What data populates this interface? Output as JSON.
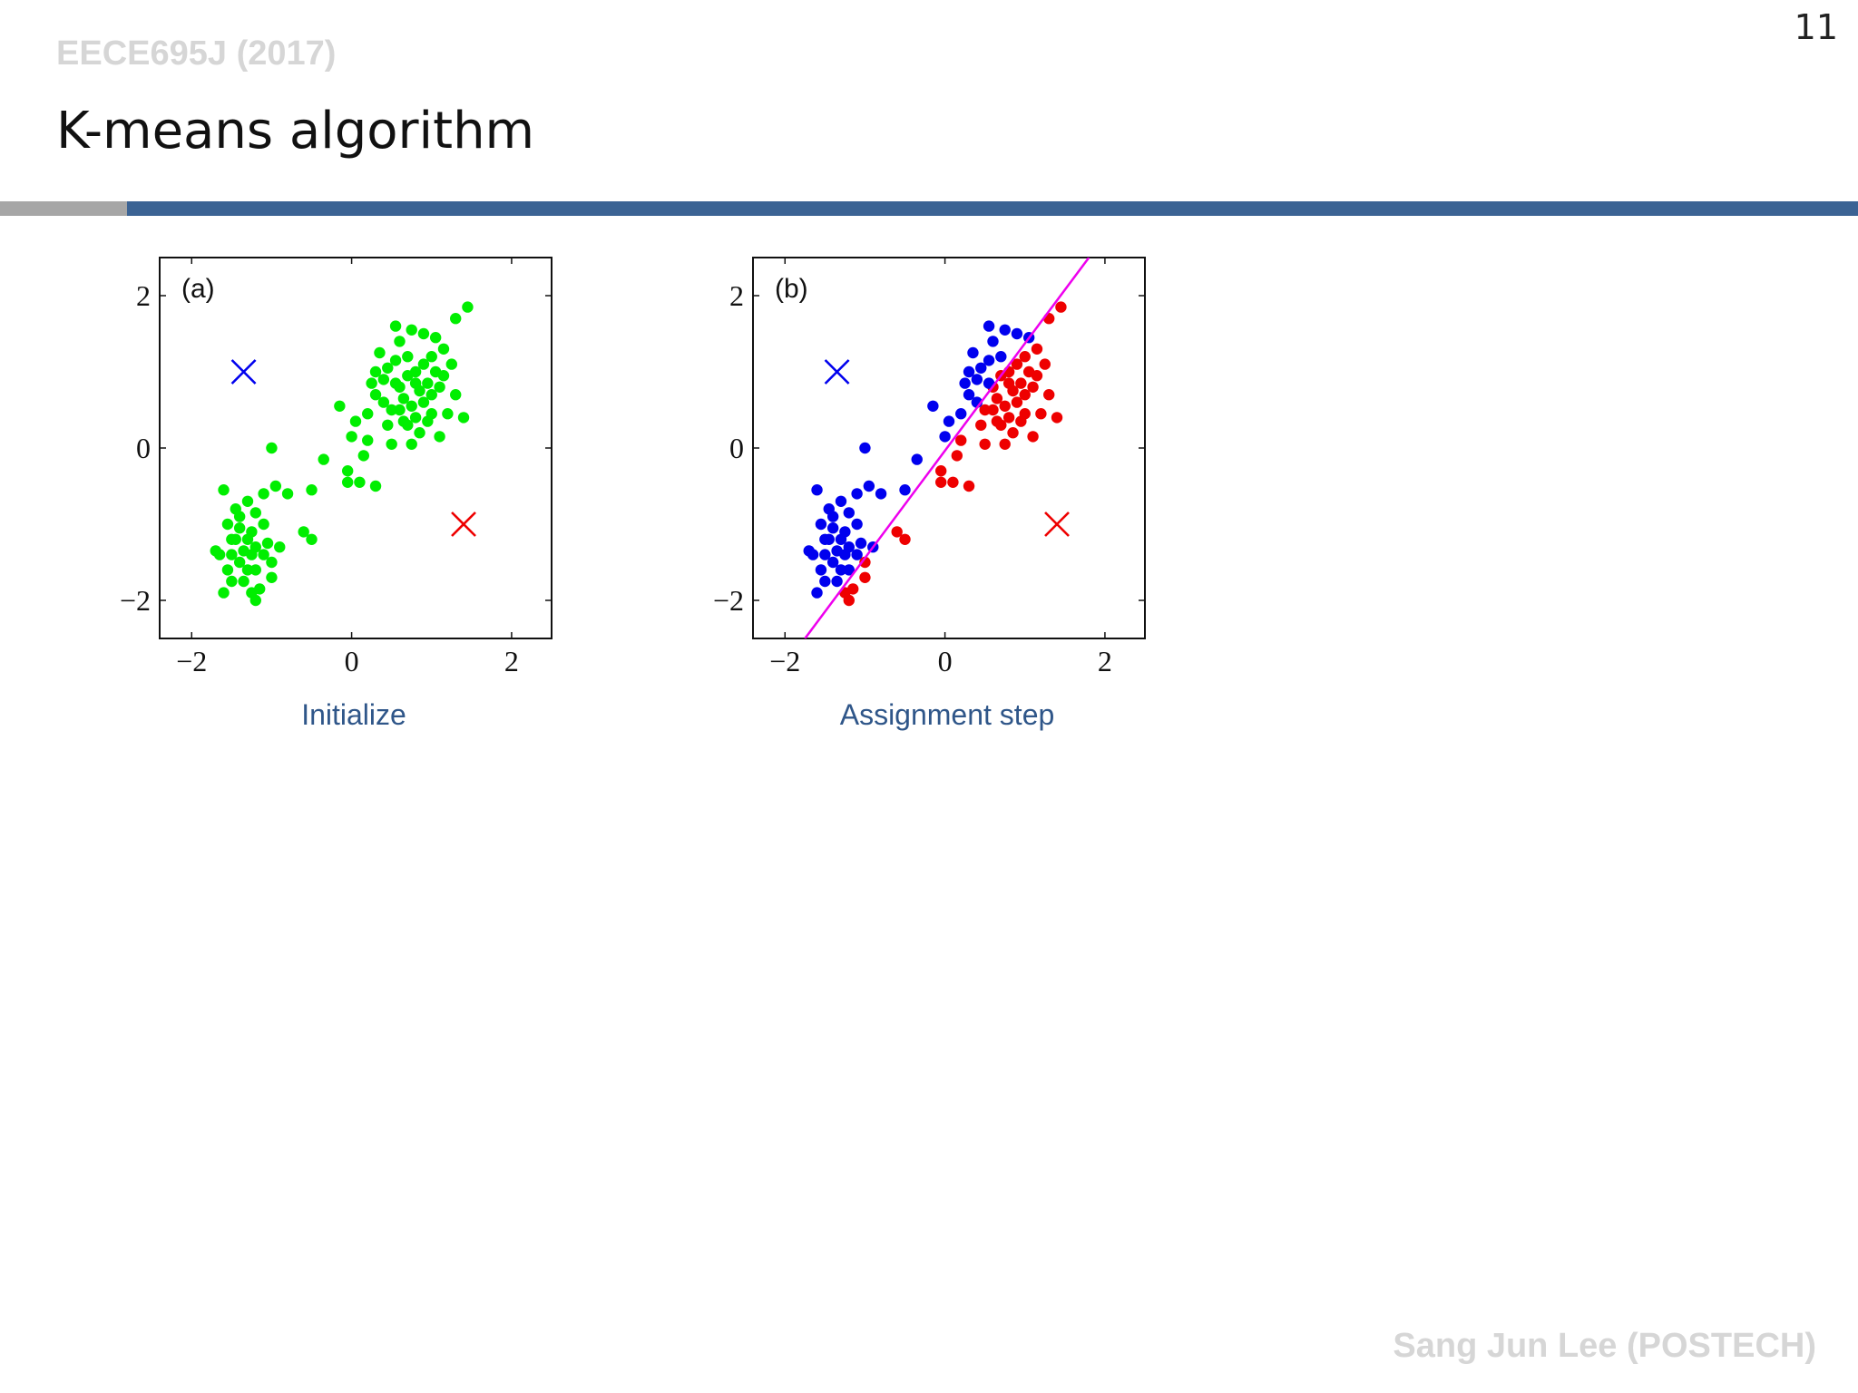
{
  "slide": {
    "course": "EECE695J (2017)",
    "page_number": "11",
    "title": "K-means algorithm",
    "footer": "Sang Jun Lee (POSTECH)"
  },
  "colors": {
    "green": "#00ee00",
    "blue": "#0000ee",
    "red": "#ee0000",
    "boundary": "#ee00ee"
  },
  "chart_data": [
    {
      "type": "scatter",
      "panel_label": "(a)",
      "caption": "Initialize",
      "xlim": [
        -2.4,
        2.5
      ],
      "ylim": [
        -2.5,
        2.5
      ],
      "xticks": [
        -2,
        0,
        2
      ],
      "yticks": [
        -2,
        0,
        2
      ],
      "tick_labels_x": [
        "−2",
        "0",
        "2"
      ],
      "tick_labels_y": [
        "−2",
        "0",
        "2"
      ],
      "centroids": [
        {
          "name": "centroid-1",
          "x": -1.35,
          "y": 1.0,
          "color": "blue"
        },
        {
          "name": "centroid-2",
          "x": 1.4,
          "y": -1.0,
          "color": "red"
        }
      ],
      "points": [
        [
          -1.2,
          -1.3
        ],
        [
          -1.3,
          -1.6
        ],
        [
          -1.5,
          -1.4
        ],
        [
          -1.1,
          -1.0
        ],
        [
          -1.4,
          -0.9
        ],
        [
          -1.6,
          -1.9
        ],
        [
          -1.0,
          -1.5
        ],
        [
          -1.25,
          -1.1
        ],
        [
          -1.45,
          -1.2
        ],
        [
          -1.35,
          -1.75
        ],
        [
          -1.15,
          -1.85
        ],
        [
          -1.55,
          -1.6
        ],
        [
          -1.05,
          -1.25
        ],
        [
          -1.3,
          -0.7
        ],
        [
          -1.6,
          -0.55
        ],
        [
          -1.4,
          -1.05
        ],
        [
          -1.2,
          -2.0
        ],
        [
          -1.5,
          -1.75
        ],
        [
          -0.95,
          -0.5
        ],
        [
          -1.0,
          -0.0
        ],
        [
          -1.25,
          -1.4
        ],
        [
          -1.4,
          -1.5
        ],
        [
          -1.3,
          -1.2
        ],
        [
          -1.2,
          -1.6
        ],
        [
          -1.1,
          -1.4
        ],
        [
          -1.35,
          -1.35
        ],
        [
          -1.5,
          -1.2
        ],
        [
          -1.45,
          -0.8
        ],
        [
          -1.65,
          -1.4
        ],
        [
          -1.0,
          -1.7
        ],
        [
          -0.6,
          -1.1
        ],
        [
          -0.5,
          -1.2
        ],
        [
          -0.5,
          -0.55
        ],
        [
          -0.8,
          -0.6
        ],
        [
          -0.9,
          -1.3
        ],
        [
          -1.1,
          -0.6
        ],
        [
          -1.2,
          -0.85
        ],
        [
          -1.55,
          -1.0
        ],
        [
          -1.7,
          -1.35
        ],
        [
          -1.25,
          -1.9
        ],
        [
          -0.35,
          -0.15
        ],
        [
          -0.05,
          -0.3
        ],
        [
          -0.05,
          -0.45
        ],
        [
          0.1,
          -0.45
        ],
        [
          0.2,
          0.1
        ],
        [
          0.05,
          0.35
        ],
        [
          -0.15,
          0.55
        ],
        [
          0.3,
          -0.5
        ],
        [
          0.15,
          -0.1
        ],
        [
          0.0,
          0.15
        ],
        [
          0.5,
          0.5
        ],
        [
          0.6,
          0.8
        ],
        [
          0.7,
          0.3
        ],
        [
          0.8,
          1.0
        ],
        [
          0.9,
          0.6
        ],
        [
          1.0,
          1.2
        ],
        [
          0.4,
          0.9
        ],
        [
          0.55,
          1.15
        ],
        [
          0.75,
          0.55
        ],
        [
          0.85,
          0.2
        ],
        [
          1.1,
          0.8
        ],
        [
          1.2,
          0.45
        ],
        [
          0.3,
          0.7
        ],
        [
          0.6,
          1.4
        ],
        [
          0.9,
          1.5
        ],
        [
          1.05,
          1.0
        ],
        [
          0.7,
          0.95
        ],
        [
          0.45,
          0.3
        ],
        [
          0.65,
          0.65
        ],
        [
          0.95,
          0.85
        ],
        [
          0.55,
          1.6
        ],
        [
          0.75,
          1.55
        ],
        [
          1.15,
          1.3
        ],
        [
          1.3,
          1.7
        ],
        [
          1.45,
          1.85
        ],
        [
          1.25,
          1.1
        ],
        [
          1.4,
          0.4
        ],
        [
          0.35,
          1.25
        ],
        [
          0.2,
          0.45
        ],
        [
          0.8,
          0.4
        ],
        [
          1.0,
          0.45
        ],
        [
          0.5,
          0.05
        ],
        [
          0.75,
          0.05
        ],
        [
          1.1,
          0.15
        ],
        [
          1.3,
          0.7
        ],
        [
          0.6,
          0.5
        ],
        [
          0.9,
          1.1
        ],
        [
          1.0,
          0.7
        ],
        [
          0.85,
          0.75
        ],
        [
          0.7,
          1.2
        ],
        [
          0.4,
          0.6
        ],
        [
          0.95,
          0.35
        ],
        [
          1.15,
          0.95
        ],
        [
          0.3,
          1.0
        ],
        [
          0.55,
          0.85
        ],
        [
          0.8,
          0.85
        ],
        [
          0.65,
          0.35
        ],
        [
          1.05,
          1.45
        ],
        [
          0.45,
          1.05
        ],
        [
          0.25,
          0.85
        ]
      ]
    },
    {
      "type": "scatter",
      "panel_label": "(b)",
      "caption": "Assignment step",
      "xlim": [
        -2.4,
        2.5
      ],
      "ylim": [
        -2.5,
        2.5
      ],
      "xticks": [
        -2,
        0,
        2
      ],
      "yticks": [
        -2,
        0,
        2
      ],
      "tick_labels_x": [
        "−2",
        "0",
        "2"
      ],
      "tick_labels_y": [
        "−2",
        "0",
        "2"
      ],
      "centroids": [
        {
          "name": "centroid-1",
          "x": -1.35,
          "y": 1.0,
          "color": "blue"
        },
        {
          "name": "centroid-2",
          "x": 1.4,
          "y": -1.0,
          "color": "red"
        }
      ],
      "decision_boundary": {
        "x": [
          -1.75,
          1.8
        ],
        "y": [
          -2.5,
          2.5
        ],
        "color": "boundary"
      },
      "points": [
        [
          -1.2,
          -1.3
        ],
        [
          -1.3,
          -1.6
        ],
        [
          -1.5,
          -1.4
        ],
        [
          -1.1,
          -1.0
        ],
        [
          -1.4,
          -0.9
        ],
        [
          -1.6,
          -1.9
        ],
        [
          -1.0,
          -1.5
        ],
        [
          -1.25,
          -1.1
        ],
        [
          -1.45,
          -1.2
        ],
        [
          -1.35,
          -1.75
        ],
        [
          -1.15,
          -1.85
        ],
        [
          -1.55,
          -1.6
        ],
        [
          -1.05,
          -1.25
        ],
        [
          -1.3,
          -0.7
        ],
        [
          -1.6,
          -0.55
        ],
        [
          -1.4,
          -1.05
        ],
        [
          -1.2,
          -2.0
        ],
        [
          -1.5,
          -1.75
        ],
        [
          -0.95,
          -0.5
        ],
        [
          -1.0,
          -0.0
        ],
        [
          -1.25,
          -1.4
        ],
        [
          -1.4,
          -1.5
        ],
        [
          -1.3,
          -1.2
        ],
        [
          -1.2,
          -1.6
        ],
        [
          -1.1,
          -1.4
        ],
        [
          -1.35,
          -1.35
        ],
        [
          -1.5,
          -1.2
        ],
        [
          -1.45,
          -0.8
        ],
        [
          -1.65,
          -1.4
        ],
        [
          -1.0,
          -1.7
        ],
        [
          -0.6,
          -1.1
        ],
        [
          -0.5,
          -1.2
        ],
        [
          -0.5,
          -0.55
        ],
        [
          -0.8,
          -0.6
        ],
        [
          -0.9,
          -1.3
        ],
        [
          -1.1,
          -0.6
        ],
        [
          -1.2,
          -0.85
        ],
        [
          -1.55,
          -1.0
        ],
        [
          -1.7,
          -1.35
        ],
        [
          -1.25,
          -1.9
        ],
        [
          -0.35,
          -0.15
        ],
        [
          -0.05,
          -0.3
        ],
        [
          -0.05,
          -0.45
        ],
        [
          0.1,
          -0.45
        ],
        [
          0.2,
          0.1
        ],
        [
          0.05,
          0.35
        ],
        [
          -0.15,
          0.55
        ],
        [
          0.3,
          -0.5
        ],
        [
          0.15,
          -0.1
        ],
        [
          0.0,
          0.15
        ],
        [
          0.5,
          0.5
        ],
        [
          0.6,
          0.8
        ],
        [
          0.7,
          0.3
        ],
        [
          0.8,
          1.0
        ],
        [
          0.9,
          0.6
        ],
        [
          1.0,
          1.2
        ],
        [
          0.4,
          0.9
        ],
        [
          0.55,
          1.15
        ],
        [
          0.75,
          0.55
        ],
        [
          0.85,
          0.2
        ],
        [
          1.1,
          0.8
        ],
        [
          1.2,
          0.45
        ],
        [
          0.3,
          0.7
        ],
        [
          0.6,
          1.4
        ],
        [
          0.9,
          1.5
        ],
        [
          1.05,
          1.0
        ],
        [
          0.7,
          0.95
        ],
        [
          0.45,
          0.3
        ],
        [
          0.65,
          0.65
        ],
        [
          0.95,
          0.85
        ],
        [
          0.55,
          1.6
        ],
        [
          0.75,
          1.55
        ],
        [
          1.15,
          1.3
        ],
        [
          1.3,
          1.7
        ],
        [
          1.45,
          1.85
        ],
        [
          1.25,
          1.1
        ],
        [
          1.4,
          0.4
        ],
        [
          0.35,
          1.25
        ],
        [
          0.2,
          0.45
        ],
        [
          0.8,
          0.4
        ],
        [
          1.0,
          0.45
        ],
        [
          0.5,
          0.05
        ],
        [
          0.75,
          0.05
        ],
        [
          1.1,
          0.15
        ],
        [
          1.3,
          0.7
        ],
        [
          0.6,
          0.5
        ],
        [
          0.9,
          1.1
        ],
        [
          1.0,
          0.7
        ],
        [
          0.85,
          0.75
        ],
        [
          0.7,
          1.2
        ],
        [
          0.4,
          0.6
        ],
        [
          0.95,
          0.35
        ],
        [
          1.15,
          0.95
        ],
        [
          0.3,
          1.0
        ],
        [
          0.55,
          0.85
        ],
        [
          0.8,
          0.85
        ],
        [
          0.65,
          0.35
        ],
        [
          1.05,
          1.45
        ],
        [
          0.45,
          1.05
        ],
        [
          0.25,
          0.85
        ]
      ]
    }
  ]
}
